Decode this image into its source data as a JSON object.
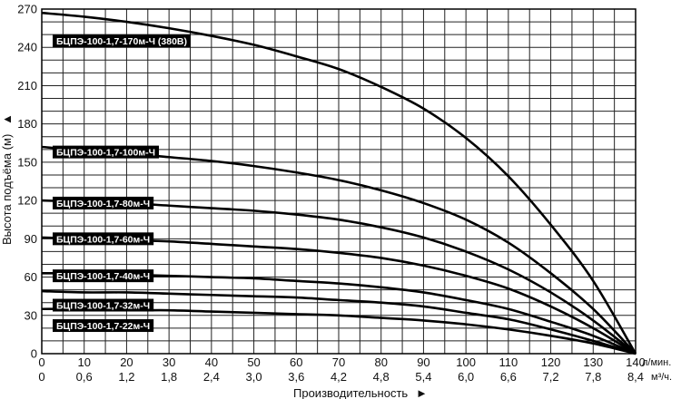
{
  "chart_data": {
    "type": "line",
    "xlabel": "Производительность",
    "ylabel": "Высота подъёма (м)",
    "x_unit_primary": "л/мин.",
    "x_unit_secondary": "м³/ч.",
    "xlim": [
      0,
      140
    ],
    "ylim": [
      0,
      270
    ],
    "x_ticks": [
      0,
      10,
      20,
      30,
      40,
      50,
      60,
      70,
      80,
      90,
      100,
      110,
      120,
      130,
      140
    ],
    "x_ticks_secondary": [
      "0",
      "0,6",
      "1,2",
      "1,8",
      "2,4",
      "3,0",
      "3,6",
      "4,2",
      "4,8",
      "5,4",
      "6,0",
      "6,6",
      "7,2",
      "7,8",
      "8,4"
    ],
    "y_ticks": [
      0,
      30,
      60,
      90,
      120,
      150,
      180,
      210,
      240,
      270
    ],
    "grid": true,
    "series": [
      {
        "name": "БЦПЭ-100-1,7-170м-Ч (380В)",
        "x": [
          0,
          10,
          20,
          30,
          40,
          50,
          60,
          70,
          80,
          90,
          100,
          110,
          120,
          130,
          140
        ],
        "y": [
          267,
          264,
          260,
          255,
          249,
          242,
          233,
          223,
          209,
          192,
          169,
          139,
          101,
          57,
          0
        ]
      },
      {
        "name": "БЦПЭ-100-1,7-100м-Ч",
        "x": [
          0,
          10,
          20,
          30,
          40,
          50,
          60,
          70,
          80,
          90,
          100,
          110,
          120,
          130,
          140
        ],
        "y": [
          162,
          159,
          157,
          154,
          151,
          147,
          142,
          136,
          128,
          118,
          105,
          87,
          63,
          35,
          0
        ]
      },
      {
        "name": "БЦПЭ-100-1,7-80м-Ч",
        "x": [
          0,
          10,
          20,
          30,
          40,
          50,
          60,
          70,
          80,
          90,
          100,
          110,
          120,
          130,
          140
        ],
        "y": [
          120,
          119,
          118,
          116,
          114,
          112,
          109,
          105,
          99,
          91,
          80,
          66,
          48,
          26,
          0
        ]
      },
      {
        "name": "БЦПЭ-100-1,7-60м-Ч",
        "x": [
          0,
          10,
          20,
          30,
          40,
          50,
          60,
          70,
          80,
          90,
          100,
          110,
          120,
          130,
          140
        ],
        "y": [
          91,
          90,
          89,
          88,
          86,
          84,
          82,
          79,
          75,
          69,
          61,
          51,
          37,
          20,
          0
        ]
      },
      {
        "name": "БЦПЭ-100-1,7-40м-Ч",
        "x": [
          0,
          10,
          20,
          30,
          40,
          50,
          60,
          70,
          80,
          90,
          100,
          110,
          120,
          130,
          140
        ],
        "y": [
          63,
          63,
          62,
          61,
          60,
          59,
          57,
          55,
          52,
          48,
          42,
          35,
          25,
          14,
          0
        ]
      },
      {
        "name": "БЦПЭ-100-1,7-32м-Ч",
        "x": [
          0,
          10,
          20,
          30,
          40,
          50,
          60,
          70,
          80,
          90,
          100,
          110,
          120,
          130,
          140
        ],
        "y": [
          49,
          48,
          48,
          47,
          46,
          45,
          44,
          42,
          40,
          37,
          32,
          27,
          19,
          10,
          0
        ]
      },
      {
        "name": "БЦПЭ-100-1,7-22м-Ч",
        "x": [
          0,
          10,
          20,
          30,
          40,
          50,
          60,
          70,
          80,
          90,
          100,
          110,
          120,
          130,
          140
        ],
        "y": [
          35,
          35,
          34,
          34,
          33,
          32,
          31,
          30,
          28,
          26,
          23,
          19,
          14,
          8,
          0
        ]
      }
    ],
    "label_anchors": [
      {
        "x": 0,
        "y": 245
      },
      {
        "x": 0,
        "y": 158
      },
      {
        "x": 0,
        "y": 118
      },
      {
        "x": 0,
        "y": 90
      },
      {
        "x": 0,
        "y": 61
      },
      {
        "x": 0,
        "y": 38
      },
      {
        "x": 0,
        "y": 22
      }
    ],
    "colors": {
      "line": "#000000",
      "grid": "#222222",
      "label_bg": "#000000",
      "label_text": "#ffffff"
    }
  }
}
